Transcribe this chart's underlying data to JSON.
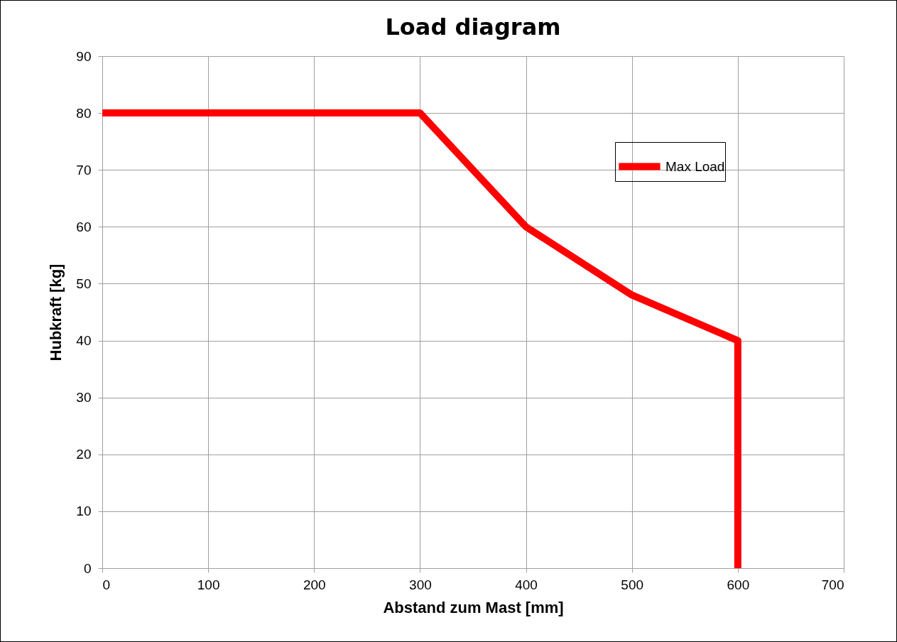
{
  "chart_data": {
    "type": "line",
    "title": "Load diagram",
    "xlabel": "Abstand zum Mast [mm]",
    "ylabel": "Hubkraft [kg]",
    "x": [
      0,
      300,
      400,
      500,
      600,
      600
    ],
    "series": [
      {
        "name": "Max Load",
        "color": "#ff0000",
        "values": [
          80,
          80,
          60,
          48,
          40,
          0
        ]
      }
    ],
    "xlim": [
      0,
      700
    ],
    "xticks": [
      0,
      100,
      200,
      300,
      400,
      500,
      600,
      700
    ],
    "ylim": [
      0,
      90
    ],
    "yticks": [
      0,
      10,
      20,
      30,
      40,
      50,
      60,
      70,
      80,
      90
    ],
    "grid": true,
    "legend": "top right",
    "marker": "none",
    "line_style": "solid"
  }
}
